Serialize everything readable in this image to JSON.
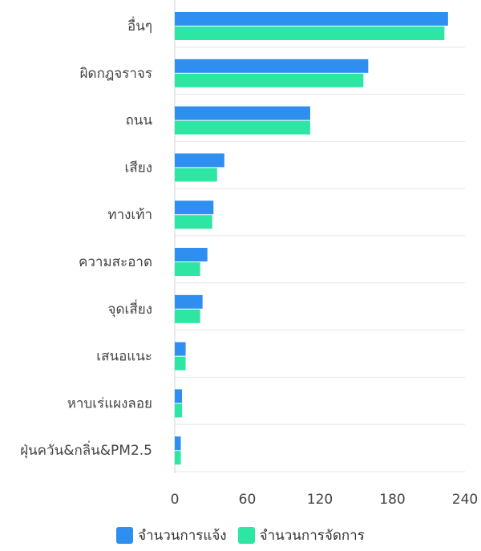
{
  "chart_data": {
    "type": "bar",
    "orientation": "horizontal",
    "categories": [
      "อื่นๆ",
      "ผิดกฎจราจร",
      "ถนน",
      "เสียง",
      "ทางเท้า",
      "ความสะอาด",
      "จุดเสี่ยง",
      "เสนอแนะ",
      "หาบเร่แผงลอย",
      "ฝุ่นควัน&กลิ่น&PM2.5"
    ],
    "series": [
      {
        "name": "จำนวนการแจ้ง",
        "color": "#2f8ff0",
        "values": [
          226,
          160,
          112,
          41,
          32,
          27,
          23,
          9,
          6,
          5
        ]
      },
      {
        "name": "จำนวนการจัดการ",
        "color": "#2ee6a4",
        "values": [
          223,
          156,
          112,
          35,
          31,
          21,
          21,
          9,
          6,
          5
        ]
      }
    ],
    "xlim": [
      0,
      240
    ],
    "xticks": [
      "0",
      "60",
      "120",
      "180",
      "240"
    ],
    "grid": true,
    "legend": "bottom"
  }
}
